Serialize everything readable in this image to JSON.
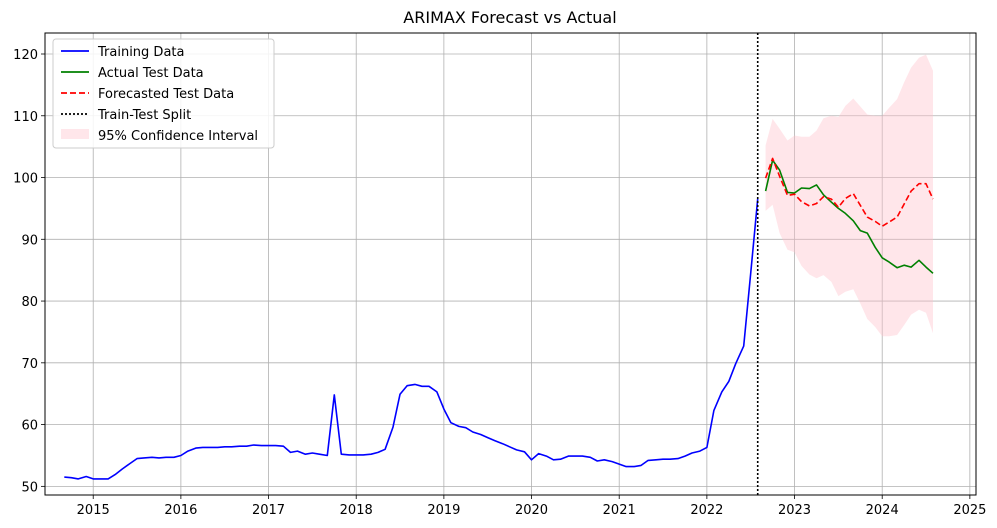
{
  "chart_data": {
    "type": "line",
    "title": "ARIMAX Forecast vs Actual",
    "xlabel": "",
    "ylabel": "",
    "x_ticks": [
      "2015",
      "2016",
      "2017",
      "2018",
      "2019",
      "2020",
      "2021",
      "2022",
      "2023",
      "2024",
      "2025"
    ],
    "y_ticks": [
      "50",
      "60",
      "70",
      "80",
      "90",
      "100",
      "110",
      "120"
    ],
    "xlim": [
      2014.45,
      2025.07
    ],
    "ylim": [
      48.6,
      123.4
    ],
    "grid": true,
    "legend_position": "top-left",
    "split_x": 2022.58,
    "series": [
      {
        "name": "Training Data",
        "color": "#0000ff",
        "style": "solid",
        "x": [
          2014.67,
          2014.75,
          2014.83,
          2014.92,
          2015.0,
          2015.08,
          2015.17,
          2015.25,
          2015.33,
          2015.42,
          2015.5,
          2015.58,
          2015.67,
          2015.75,
          2015.83,
          2015.92,
          2016.0,
          2016.08,
          2016.17,
          2016.25,
          2016.33,
          2016.42,
          2016.5,
          2016.58,
          2016.67,
          2016.75,
          2016.83,
          2016.92,
          2017.0,
          2017.08,
          2017.17,
          2017.25,
          2017.33,
          2017.42,
          2017.5,
          2017.58,
          2017.67,
          2017.75,
          2017.83,
          2017.92,
          2018.0,
          2018.08,
          2018.17,
          2018.25,
          2018.33,
          2018.42,
          2018.5,
          2018.58,
          2018.67,
          2018.75,
          2018.83,
          2018.92,
          2019.0,
          2019.08,
          2019.17,
          2019.25,
          2019.33,
          2019.42,
          2019.5,
          2019.58,
          2019.67,
          2019.75,
          2019.83,
          2019.92,
          2020.0,
          2020.08,
          2020.17,
          2020.25,
          2020.33,
          2020.42,
          2020.5,
          2020.58,
          2020.67,
          2020.75,
          2020.83,
          2020.92,
          2021.0,
          2021.08,
          2021.17,
          2021.25,
          2021.33,
          2021.42,
          2021.5,
          2021.58,
          2021.67,
          2021.75,
          2021.83,
          2021.92,
          2022.0,
          2022.08,
          2022.17,
          2022.25,
          2022.33,
          2022.42,
          2022.5,
          2022.58
        ],
        "values": [
          51.5,
          51.4,
          51.2,
          51.6,
          51.2,
          51.2,
          51.2,
          51.9,
          52.8,
          53.7,
          54.5,
          54.6,
          54.7,
          54.6,
          54.7,
          54.7,
          55.0,
          55.7,
          56.2,
          56.3,
          56.3,
          56.3,
          56.4,
          56.4,
          56.5,
          56.5,
          56.7,
          56.6,
          56.6,
          56.6,
          56.5,
          55.5,
          55.7,
          55.2,
          55.4,
          55.2,
          55.0,
          64.8,
          55.2,
          55.1,
          55.1,
          55.1,
          55.2,
          55.5,
          56.0,
          59.6,
          64.9,
          66.3,
          66.5,
          66.2,
          66.2,
          65.3,
          62.5,
          60.3,
          59.7,
          59.5,
          58.8,
          58.4,
          57.9,
          57.4,
          56.9,
          56.4,
          55.9,
          55.6,
          54.3,
          55.3,
          54.9,
          54.3,
          54.4,
          54.9,
          54.9,
          54.9,
          54.7,
          54.1,
          54.3,
          54.0,
          53.6,
          53.2,
          53.2,
          53.4,
          54.2,
          54.3,
          54.4,
          54.4,
          54.5,
          54.9,
          55.4,
          55.7,
          56.3,
          62.3,
          65.3,
          67.0,
          69.9,
          72.7,
          84.5,
          96.5
        ]
      },
      {
        "name": "Actual Test Data",
        "color": "#008000",
        "style": "solid",
        "x": [
          2022.67,
          2022.75,
          2022.83,
          2022.92,
          2023.0,
          2023.08,
          2023.17,
          2023.25,
          2023.33,
          2023.42,
          2023.5,
          2023.58,
          2023.67,
          2023.75,
          2023.83,
          2023.92,
          2024.0,
          2024.08,
          2024.17,
          2024.25,
          2024.33,
          2024.42,
          2024.5,
          2024.58
        ],
        "values": [
          97.8,
          102.8,
          101.2,
          97.6,
          97.5,
          98.3,
          98.2,
          98.8,
          97.2,
          96.0,
          95.0,
          94.2,
          93.0,
          91.4,
          91.0,
          88.7,
          87.0,
          86.3,
          85.4,
          85.8,
          85.5,
          86.6,
          85.5,
          84.5
        ]
      },
      {
        "name": "Forecasted Test Data",
        "color": "#ff0000",
        "style": "dashed",
        "x": [
          2022.67,
          2022.75,
          2022.83,
          2022.92,
          2023.0,
          2023.08,
          2023.17,
          2023.25,
          2023.33,
          2023.42,
          2023.5,
          2023.58,
          2023.67,
          2023.75,
          2023.83,
          2023.92,
          2024.0,
          2024.08,
          2024.17,
          2024.25,
          2024.33,
          2024.42,
          2024.5,
          2024.58
        ],
        "values": [
          99.9,
          103.1,
          100.2,
          97.1,
          97.3,
          96.1,
          95.4,
          95.8,
          96.9,
          96.5,
          95.2,
          96.6,
          97.4,
          95.5,
          93.6,
          92.9,
          92.1,
          92.8,
          93.6,
          95.7,
          97.8,
          99.0,
          99.0,
          96.5
        ]
      }
    ],
    "confidence_interval": {
      "name": "95% Confidence Interval",
      "color": "#ffc0cb",
      "x": [
        2022.67,
        2022.75,
        2022.83,
        2022.92,
        2023.0,
        2023.08,
        2023.17,
        2023.25,
        2023.33,
        2023.42,
        2023.5,
        2023.58,
        2023.67,
        2023.75,
        2023.83,
        2023.92,
        2024.0,
        2024.08,
        2024.17,
        2024.25,
        2024.33,
        2024.42,
        2024.5,
        2024.58
      ],
      "lower": [
        94.6,
        95.6,
        91.0,
        88.3,
        87.9,
        85.7,
        84.3,
        83.7,
        84.2,
        83.1,
        80.8,
        81.5,
        81.9,
        79.6,
        77.1,
        75.8,
        74.3,
        74.3,
        74.5,
        76.1,
        77.8,
        78.6,
        78.1,
        74.8
      ],
      "upper": [
        105.2,
        109.5,
        107.9,
        106.0,
        106.8,
        106.6,
        106.6,
        107.6,
        109.6,
        110.0,
        109.8,
        111.6,
        112.8,
        111.5,
        110.2,
        110.0,
        110.0,
        111.3,
        112.7,
        115.4,
        117.8,
        119.4,
        119.9,
        117.3
      ]
    },
    "split_line": {
      "name": "Train-Test Split",
      "color": "#000000",
      "style": "dotted"
    }
  }
}
